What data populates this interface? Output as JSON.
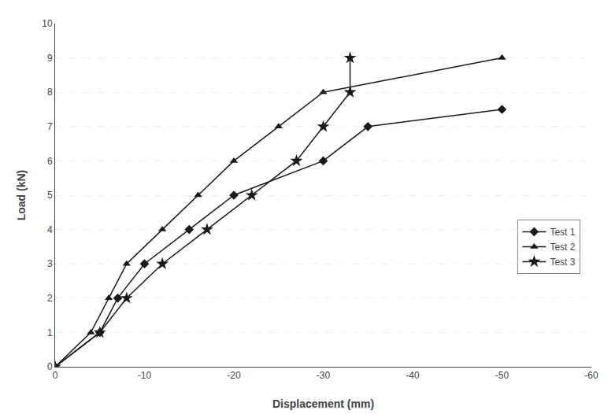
{
  "chart_data": {
    "type": "line",
    "xlabel": "Displacement (mm)",
    "ylabel": "Load (kN)",
    "series": [
      {
        "name": "Test 1",
        "color": "#1a1a1a",
        "marker": "diamond",
        "x": [
          0,
          -5,
          -7,
          -10,
          -15,
          -20,
          -30,
          -35,
          -50
        ],
        "values": [
          0,
          1,
          2,
          3,
          4,
          5,
          6,
          7,
          7.5
        ]
      },
      {
        "name": "Test 2",
        "color": "#1a1a1a",
        "marker": "triangle",
        "x": [
          0,
          -4,
          -6,
          -8,
          -12,
          -16,
          -20,
          -25,
          -30,
          -50
        ],
        "values": [
          0,
          1,
          2,
          3,
          4,
          5,
          6,
          7,
          8,
          9
        ]
      },
      {
        "name": "Test 3",
        "color": "#1a1a1a",
        "marker": "star",
        "x": [
          0,
          -5,
          -8,
          -12,
          -17,
          -22,
          -27,
          -30,
          -33,
          -33
        ],
        "values": [
          0,
          1,
          2,
          3,
          4,
          5,
          6,
          7,
          8,
          9
        ]
      }
    ],
    "xlim": [
      0,
      -60
    ],
    "xticks": [
      0,
      -10,
      -20,
      -30,
      -40,
      -50,
      -60
    ],
    "ylim": [
      0,
      10
    ],
    "yticks": [
      0,
      1,
      2,
      3,
      4,
      5,
      6,
      7,
      8,
      9,
      10
    ],
    "grid": "y",
    "legend": "lower right"
  }
}
